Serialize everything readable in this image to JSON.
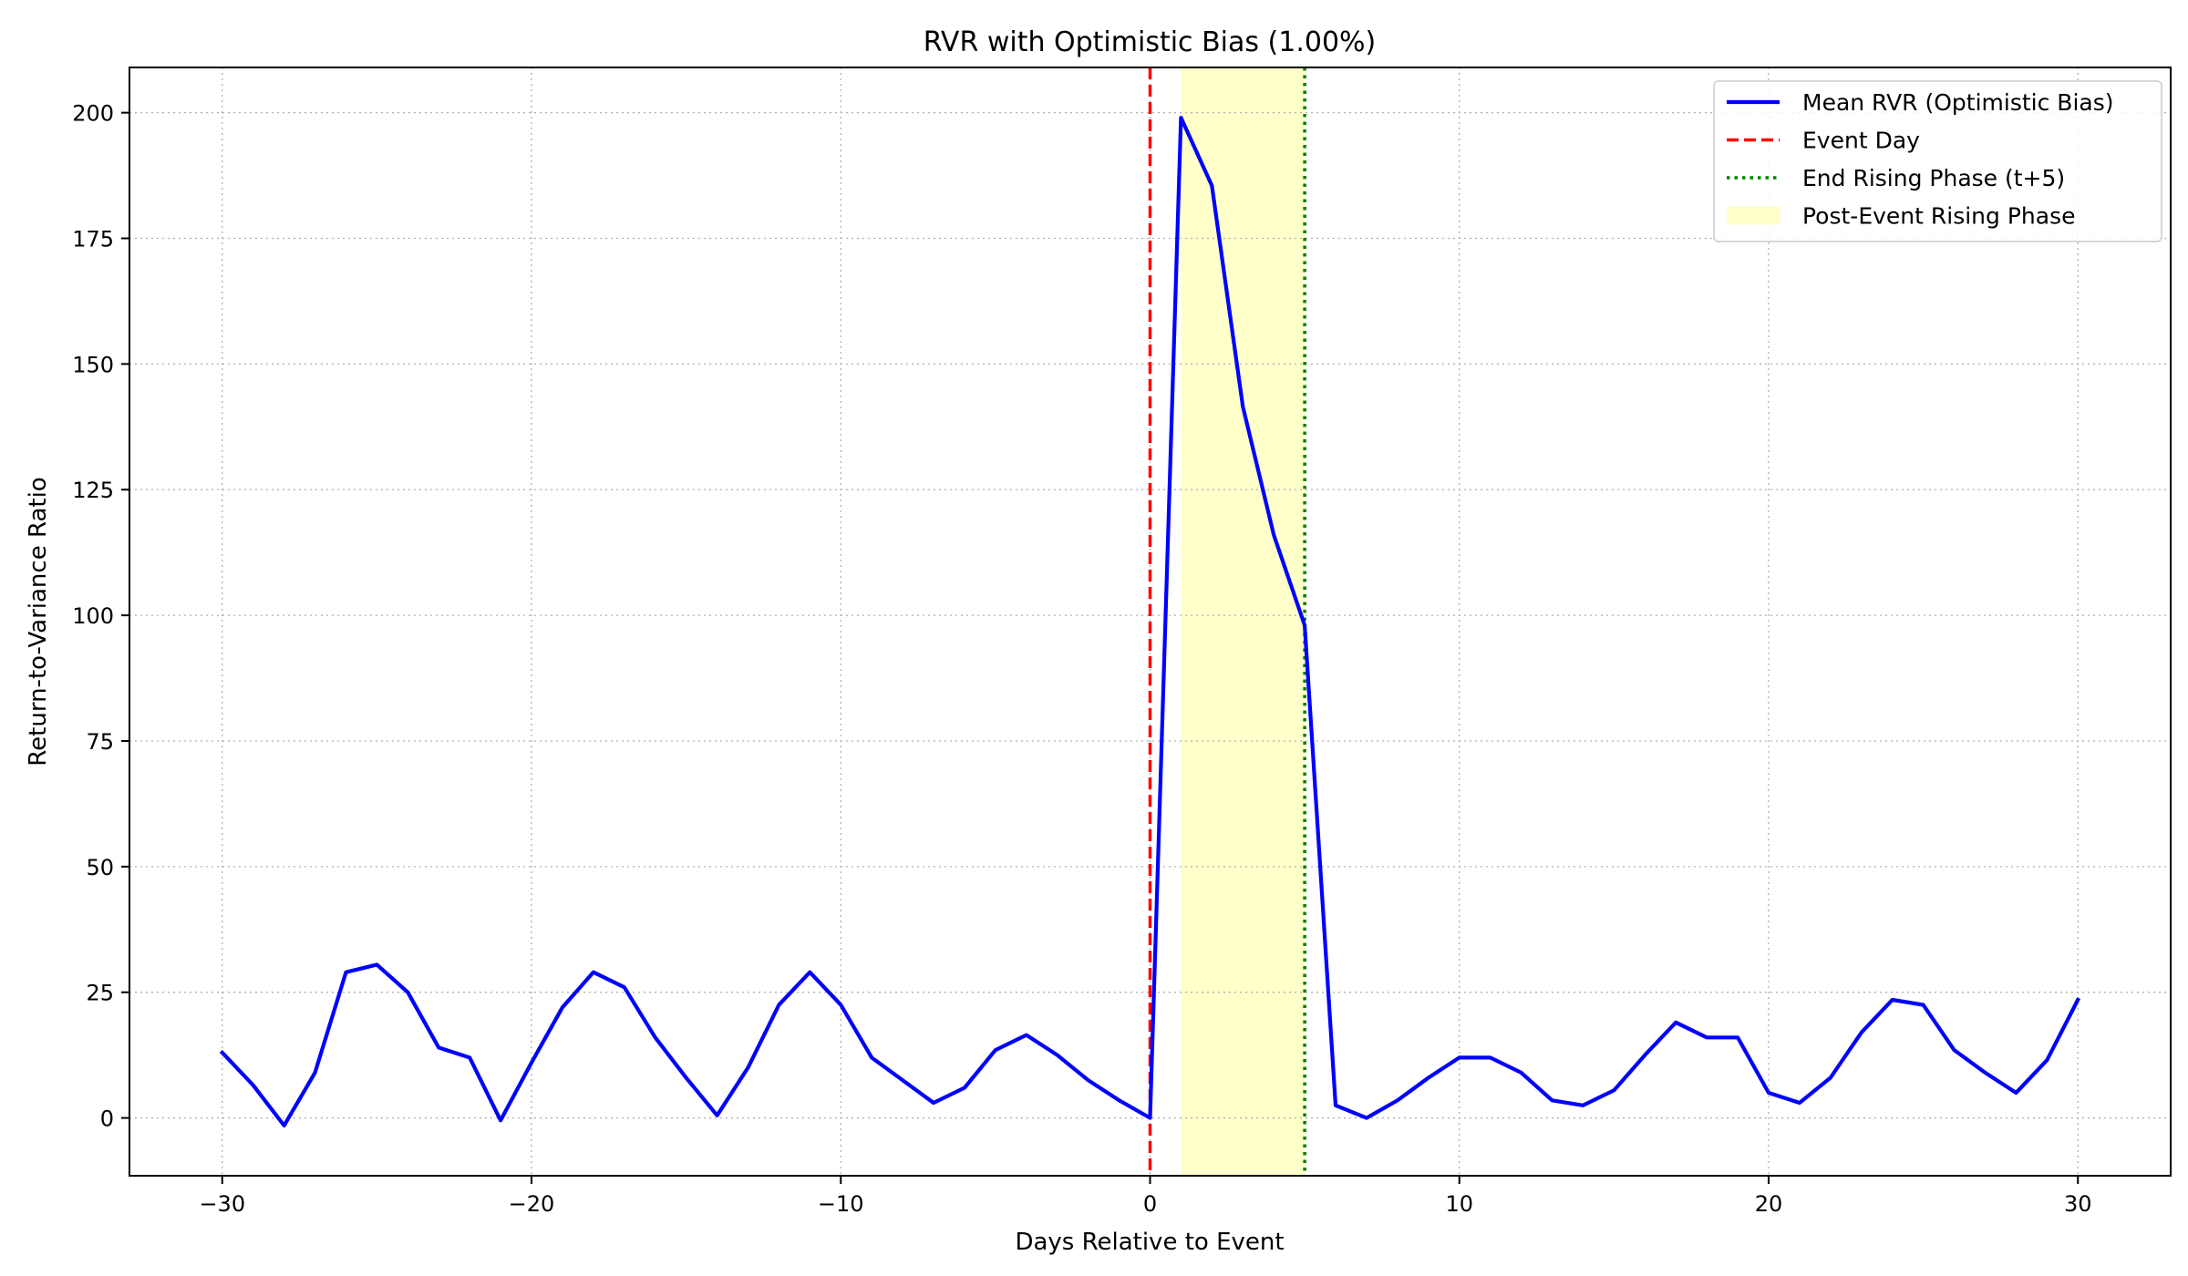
{
  "chart_data": {
    "type": "line",
    "title": "RVR with Optimistic Bias (1.00%)",
    "xlabel": "Days Relative to Event",
    "ylabel": "Return-to-Variance Ratio",
    "xlim": [
      -33,
      33
    ],
    "ylim": [
      -11.5,
      209
    ],
    "xticks": [
      -30,
      -20,
      -10,
      0,
      10,
      20,
      30
    ],
    "xtick_labels": [
      "−30",
      "−20",
      "−10",
      "0",
      "10",
      "20",
      "30"
    ],
    "yticks": [
      0,
      25,
      50,
      75,
      100,
      125,
      150,
      175,
      200
    ],
    "ytick_labels": [
      "0",
      "25",
      "50",
      "75",
      "100",
      "125",
      "150",
      "175",
      "200"
    ],
    "grid": true,
    "legend_position": "top-right",
    "colors": {
      "series": "#0000ff",
      "event_line": "#ff0000",
      "end_line": "#008000",
      "shade": "#ffffc0"
    },
    "series": [
      {
        "name": "Mean RVR (Optimistic Bias)",
        "x": [
          -30,
          -29,
          -28,
          -27,
          -26,
          -25,
          -24,
          -23,
          -22,
          -21,
          -20,
          -19,
          -18,
          -17,
          -16,
          -15,
          -14,
          -13,
          -12,
          -11,
          -10,
          -9,
          -8,
          -7,
          -6,
          -5,
          -4,
          -3,
          -2,
          -1,
          0,
          1,
          2,
          3,
          4,
          5,
          6,
          7,
          8,
          9,
          10,
          11,
          12,
          13,
          14,
          15,
          16,
          17,
          18,
          19,
          20,
          21,
          22,
          23,
          24,
          25,
          26,
          27,
          28,
          29,
          30
        ],
        "y": [
          13,
          6.5,
          -1.5,
          9,
          29,
          30.5,
          25,
          14,
          12,
          -0.5,
          11,
          22,
          29,
          26,
          16,
          8,
          0.5,
          10,
          22.5,
          29,
          22.5,
          12,
          7.5,
          3,
          6,
          13.5,
          16.5,
          12.5,
          7.5,
          3.5,
          0,
          199,
          185.5,
          141.5,
          116,
          98,
          2.5,
          0,
          3.5,
          8,
          12,
          12,
          9,
          3.5,
          2.5,
          5.5,
          12.5,
          19,
          16,
          16,
          5,
          3,
          8,
          17,
          23.5,
          22.5,
          13.5,
          9,
          5,
          11.5,
          23.5
        ]
      }
    ],
    "annotations": [
      {
        "kind": "vline",
        "x": 0,
        "style": "dashed",
        "label": "Event Day"
      },
      {
        "kind": "vline",
        "x": 5,
        "style": "dotted",
        "label": "End Rising Phase (t+5)"
      },
      {
        "kind": "span",
        "x0": 1,
        "x1": 5,
        "label": "Post-Event Rising Phase"
      }
    ],
    "legend": [
      {
        "label": "Mean RVR (Optimistic Bias)",
        "kind": "line"
      },
      {
        "label": "Event Day",
        "kind": "dashed"
      },
      {
        "label": "End Rising Phase (t+5)",
        "kind": "dotted"
      },
      {
        "label": "Post-Event Rising Phase",
        "kind": "patch"
      }
    ]
  }
}
